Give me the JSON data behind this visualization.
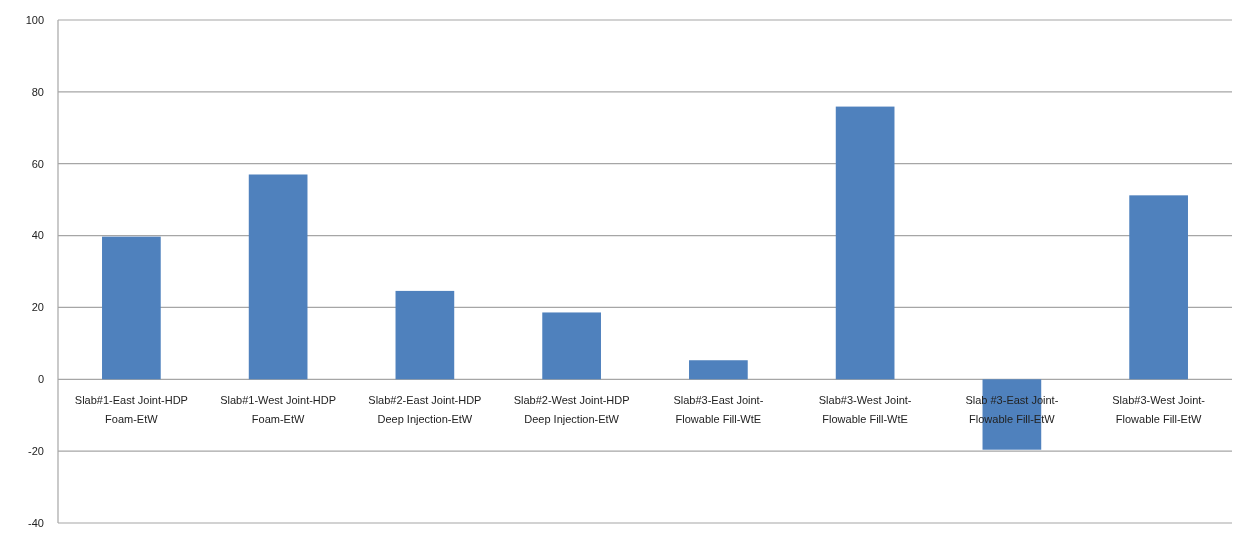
{
  "chart_data": {
    "type": "bar",
    "categories": [
      "Slab#1-East Joint-HDP\nFoam-EtW",
      "Slab#1-West Joint-HDP\nFoam-EtW",
      "Slab#2-East Joint-HDP\nDeep Injection-EtW",
      "Slab#2-West Joint-HDP\nDeep Injection-EtW",
      "Slab#3-East Joint-\nFlowable Fill-WtE",
      "Slab#3-West Joint-\nFlowable Fill-WtE",
      "Slab #3-East Joint-\nFlowable Fill-EtW",
      "Slab#3-West Joint-\nFlowable Fill-EtW"
    ],
    "values": [
      39.7,
      57,
      24.6,
      18.6,
      5.3,
      75.9,
      -19.6,
      51.2
    ],
    "color": "#4f81bd",
    "ylim": [
      -40,
      100
    ],
    "yticks": [
      -40,
      -20,
      0,
      20,
      40,
      60,
      80,
      100
    ],
    "grid": "y"
  }
}
